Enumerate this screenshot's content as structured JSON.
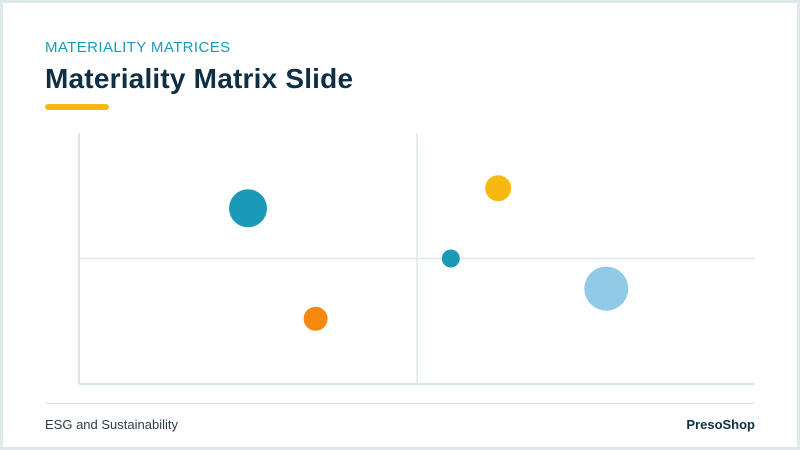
{
  "header": {
    "eyebrow": "MATERIALITY MATRICES",
    "title": "Materiality Matrix Slide"
  },
  "footer": {
    "left": "ESG and Sustainability",
    "right": "PresoShop"
  },
  "colors": {
    "accent_teal": "#1b9ab8",
    "accent_yellow": "#f6b90f",
    "accent_orange": "#f7880f",
    "accent_light_blue": "#8fcbe6",
    "title_navy": "#0f2f44",
    "axis_line": "#dde7ea"
  },
  "chart_data": {
    "type": "scatter",
    "title": "",
    "xlabel": "",
    "ylabel": "",
    "xlim": [
      0,
      100
    ],
    "ylim": [
      0,
      100
    ],
    "quadrant_divider": {
      "x": 50,
      "y": 50
    },
    "points": [
      {
        "x": 25,
        "y": 70,
        "size": 19,
        "color": "#1b9ab8"
      },
      {
        "x": 35,
        "y": 26,
        "size": 12,
        "color": "#f7880f"
      },
      {
        "x": 55,
        "y": 50,
        "size": 9,
        "color": "#1b9ab8"
      },
      {
        "x": 62,
        "y": 78,
        "size": 13,
        "color": "#f6b90f"
      },
      {
        "x": 78,
        "y": 38,
        "size": 22,
        "color": "#8fcbe6"
      }
    ]
  }
}
